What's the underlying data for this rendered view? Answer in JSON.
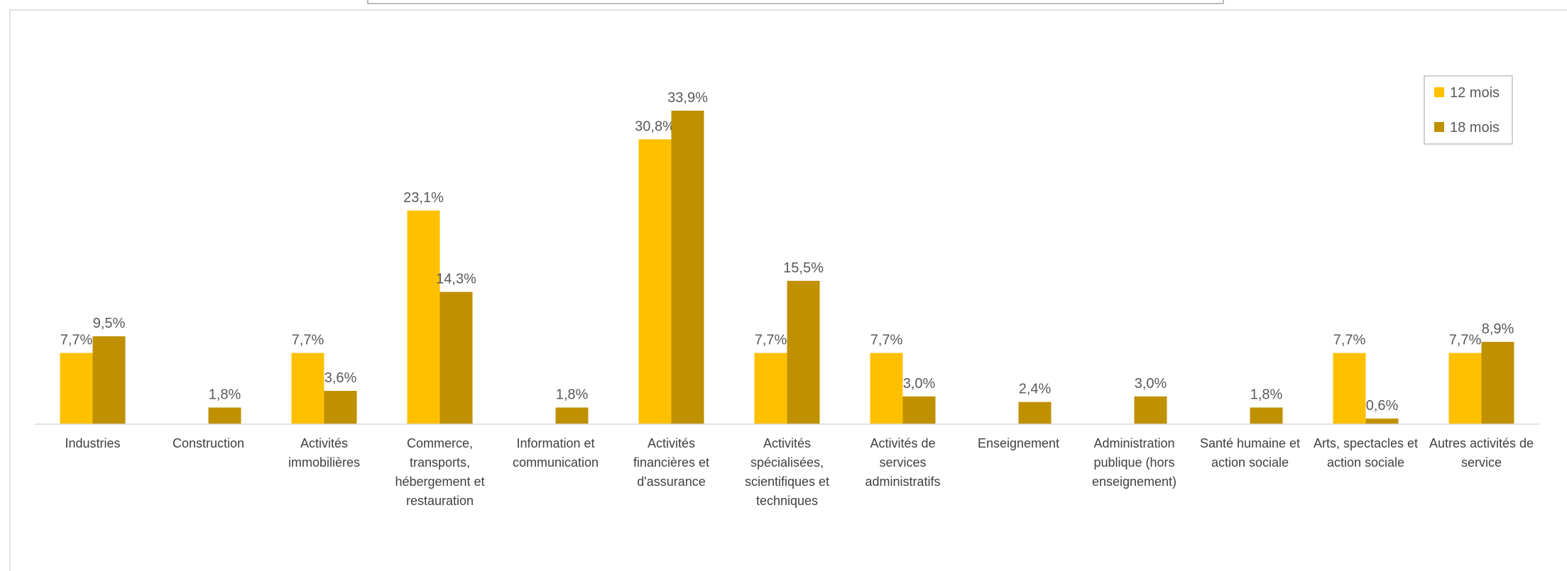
{
  "chart_data": {
    "type": "bar",
    "categories": [
      "Industries",
      "Construction",
      "Activités immobilières",
      "Commerce, transports, hébergement et restauration",
      "Information et communication",
      "Activités financières et d'assurance",
      "Activités spécialisées, scientifiques et techniques",
      "Activités de services administratifs",
      "Enseignement",
      "Administration publique (hors enseignement)",
      "Santé humaine et action sociale",
      "Arts, spectacles et action sociale",
      "Autres activités de service"
    ],
    "series": [
      {
        "name": "12 mois",
        "color": "#FFC000",
        "values": [
          7.7,
          null,
          7.7,
          23.1,
          null,
          30.8,
          7.7,
          7.7,
          null,
          null,
          null,
          7.7,
          7.7
        ],
        "value_labels": [
          "7,7%",
          null,
          "7,7%",
          "23,1%",
          null,
          "30,8%",
          "7,7%",
          "7,7%",
          null,
          null,
          null,
          "7,7%",
          "7,7%"
        ]
      },
      {
        "name": "18 mois",
        "color": "#BF9000",
        "values": [
          9.5,
          1.8,
          3.6,
          14.3,
          1.8,
          33.9,
          15.5,
          3.0,
          2.4,
          3.0,
          1.8,
          0.6,
          8.9
        ],
        "value_labels": [
          "9,5%",
          "1,8%",
          "3,6%",
          "14,3%",
          "1,8%",
          "33,9%",
          "15,5%",
          "3,0%",
          "2,4%",
          "3,0%",
          "1,8%",
          "0,6%",
          "8,9%"
        ]
      }
    ],
    "legend": "top-right"
  }
}
